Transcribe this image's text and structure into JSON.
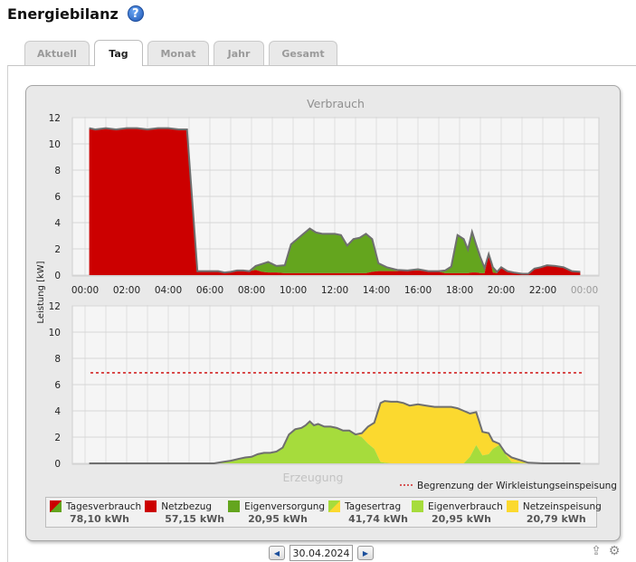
{
  "header": {
    "title": "Energiebilanz",
    "help_icon": "help-icon"
  },
  "tabs": [
    {
      "label": "Aktuell",
      "active": false
    },
    {
      "label": "Tag",
      "active": true
    },
    {
      "label": "Monat",
      "active": false
    },
    {
      "label": "Jahr",
      "active": false
    },
    {
      "label": "Gesamt",
      "active": false
    }
  ],
  "chart": {
    "top_title": "Verbrauch",
    "bottom_title": "Erzeugung",
    "ylabel": "Leistung [kW]",
    "limit_label": "Begrenzung der Wirkleistungseinspeisung"
  },
  "chart_data": [
    {
      "type": "area",
      "title": "Verbrauch",
      "ylabel": "Leistung [kW]",
      "ylim": [
        0,
        12
      ],
      "yticks": [
        "0",
        "2",
        "4",
        "6",
        "8",
        "10",
        "12"
      ],
      "xticks": [
        "00:00",
        "02:00",
        "04:00",
        "06:00",
        "08:00",
        "10:00",
        "12:00",
        "14:00",
        "16:00",
        "18:00",
        "20:00",
        "22:00",
        "00:00"
      ],
      "x": [
        0.2,
        0.5,
        1,
        1.5,
        2,
        2.5,
        3,
        3.5,
        4,
        4.5,
        4.9,
        5.4,
        5.9,
        6.4,
        6.7,
        7,
        7.3,
        7.6,
        7.9,
        8.2,
        8.5,
        8.8,
        9.2,
        9.6,
        9.9,
        10.2,
        10.5,
        10.8,
        11.1,
        11.4,
        11.7,
        12,
        12.3,
        12.6,
        12.9,
        13.2,
        13.5,
        13.8,
        14.1,
        14.5,
        15,
        15.5,
        16,
        16.5,
        17,
        17.3,
        17.6,
        17.9,
        18.2,
        18.4,
        18.6,
        18.8,
        19.0,
        19.2,
        19.4,
        19.6,
        19.8,
        20.0,
        20.3,
        20.6,
        21,
        21.3,
        21.6,
        21.9,
        22.2,
        22.6,
        23,
        23.4,
        23.8
      ],
      "series": [
        {
          "name": "Netzbezug",
          "color": "#cc0000",
          "values": [
            11.2,
            11.1,
            11.2,
            11.1,
            11.2,
            11.2,
            11.1,
            11.2,
            11.2,
            11.1,
            11.1,
            0.3,
            0.3,
            0.3,
            0.2,
            0.25,
            0.35,
            0.35,
            0.3,
            0.4,
            0.25,
            0.2,
            0.2,
            0.15,
            0.15,
            0.15,
            0.15,
            0.15,
            0.15,
            0.15,
            0.15,
            0.15,
            0.15,
            0.15,
            0.15,
            0.15,
            0.15,
            0.25,
            0.3,
            0.3,
            0.3,
            0.35,
            0.35,
            0.3,
            0.25,
            0.15,
            0.15,
            0.15,
            0.15,
            0.15,
            0.2,
            0.2,
            0.15,
            0.15,
            1.6,
            0.2,
            0.15,
            0.6,
            0.3,
            0.2,
            0.1,
            0.1,
            0.5,
            0.6,
            0.75,
            0.7,
            0.6,
            0.3,
            0.25
          ]
        },
        {
          "name": "Eigenversorgung",
          "color": "#64a51e",
          "values": [
            0,
            0,
            0,
            0,
            0,
            0,
            0,
            0,
            0,
            0,
            0,
            0,
            0,
            0,
            0,
            0,
            0,
            0,
            0,
            0.3,
            0.6,
            0.8,
            0.5,
            0.6,
            2.2,
            2.6,
            3.0,
            3.4,
            3.1,
            3.0,
            3.0,
            3.0,
            2.9,
            2.1,
            2.6,
            2.7,
            3.0,
            2.5,
            0.6,
            0.3,
            0.1,
            0,
            0.1,
            0,
            0.05,
            0.2,
            0.5,
            2.9,
            2.6,
            1.8,
            3.1,
            2.1,
            1.2,
            0.4,
            0,
            0.4,
            0.1,
            0,
            0,
            0,
            0,
            0,
            0,
            0,
            0,
            0,
            0,
            0,
            0
          ]
        }
      ]
    },
    {
      "type": "area",
      "title": "Erzeugung",
      "ylabel": "Leistung [kW]",
      "ylim": [
        0,
        12
      ],
      "yticks": [
        "0",
        "2",
        "4",
        "6",
        "8",
        "10",
        "12"
      ],
      "limit_kw": 6.9,
      "x": [
        0.2,
        6.2,
        6.6,
        7,
        7.4,
        7.7,
        8,
        8.3,
        8.6,
        8.9,
        9.2,
        9.5,
        9.8,
        10.1,
        10.4,
        10.6,
        10.8,
        11.0,
        11.2,
        11.5,
        11.8,
        12.1,
        12.4,
        12.7,
        13.0,
        13.3,
        13.6,
        13.9,
        14.2,
        14.4,
        14.7,
        15.0,
        15.3,
        15.6,
        16.0,
        16.4,
        16.8,
        17.2,
        17.6,
        17.9,
        18.2,
        18.5,
        18.8,
        19.1,
        19.4,
        19.6,
        19.9,
        20.2,
        20.5,
        20.9,
        21.3,
        22,
        23,
        23.8
      ],
      "series": [
        {
          "name": "Eigenverbrauch",
          "color": "#a6dc3c",
          "values": [
            0,
            0,
            0.1,
            0.2,
            0.35,
            0.45,
            0.5,
            0.7,
            0.8,
            0.8,
            0.9,
            1.2,
            2.2,
            2.6,
            2.7,
            2.9,
            3.2,
            2.9,
            3.0,
            2.8,
            2.8,
            2.7,
            2.5,
            2.5,
            2.2,
            2.0,
            1.5,
            1.1,
            0.1,
            0.05,
            0,
            0,
            0,
            0,
            0,
            0,
            0,
            0,
            0,
            0,
            0,
            0.5,
            1.4,
            0.6,
            0.7,
            1.1,
            1.4,
            0.7,
            0.1,
            0.05,
            0,
            0,
            0,
            0
          ]
        },
        {
          "name": "Netzeinspeisung",
          "color": "#fbd92f",
          "values": [
            0,
            0,
            0,
            0,
            0,
            0,
            0,
            0,
            0,
            0,
            0,
            0,
            0,
            0,
            0,
            0,
            0,
            0,
            0,
            0,
            0,
            0,
            0,
            0,
            0,
            0.3,
            1.3,
            2.0,
            4.5,
            4.7,
            4.7,
            4.7,
            4.6,
            4.4,
            4.5,
            4.4,
            4.3,
            4.3,
            4.3,
            4.2,
            4.0,
            3.3,
            2.5,
            1.8,
            1.6,
            0.6,
            0.1,
            0.1,
            0.35,
            0.2,
            0.05,
            0,
            0,
            0
          ]
        }
      ]
    }
  ],
  "legend": [
    {
      "label": "Tagesverbrauch",
      "value": "78,10 kWh",
      "swatch": [
        "#cc0000",
        "#64a51e"
      ]
    },
    {
      "label": "Netzbezug",
      "value": "57,15 kWh",
      "swatch": [
        "#cc0000"
      ]
    },
    {
      "label": "Eigenversorgung",
      "value": "20,95 kWh",
      "swatch": [
        "#64a51e"
      ]
    },
    {
      "label": "Tagesertrag",
      "value": "41,74 kWh",
      "swatch": [
        "#a6dc3c",
        "#fbd92f"
      ]
    },
    {
      "label": "Eigenverbrauch",
      "value": "20,95 kWh",
      "swatch": [
        "#a6dc3c"
      ]
    },
    {
      "label": "Netzeinspeisung",
      "value": "20,79 kWh",
      "swatch": [
        "#fbd92f"
      ]
    }
  ],
  "date_nav": {
    "date": "30.04.2024",
    "prev_icon": "triangle-left-icon",
    "next_icon": "triangle-right-icon"
  },
  "corner_icons": [
    "upload-icon",
    "settings-icon"
  ]
}
